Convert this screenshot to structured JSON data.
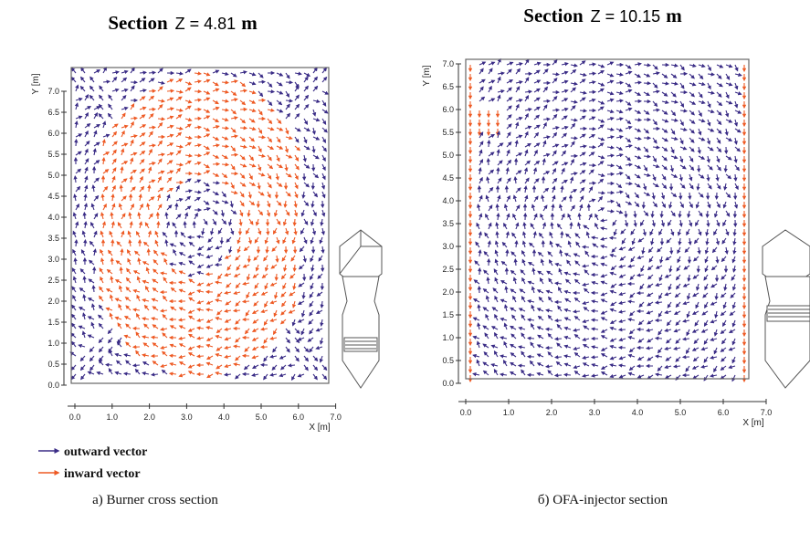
{
  "panels": [
    {
      "title": {
        "word": "Section",
        "equation": "Z = 4.81",
        "unit": "m"
      },
      "x_label": "X [m]",
      "y_label": "Y [m]",
      "xticks": [
        "0.0",
        "1.0",
        "2.0",
        "3.0",
        "4.0",
        "5.0",
        "6.0",
        "7.0"
      ],
      "yticks": [
        "0.0",
        "0.5",
        "1.0",
        "1.5",
        "2.0",
        "2.5",
        "3.0",
        "3.5",
        "4.0",
        "4.5",
        "5.0",
        "5.5",
        "6.0",
        "6.5",
        "7.0"
      ],
      "caption": "a) Burner cross section"
    },
    {
      "title": {
        "word": "Section",
        "equation": "Z = 10.15",
        "unit": "m"
      },
      "x_label": "X [m]",
      "y_label": "Y [m]",
      "xticks": [
        "0.0",
        "1.0",
        "2.0",
        "3.0",
        "4.0",
        "5.0",
        "6.0",
        "7.0"
      ],
      "yticks": [
        "0.0",
        "0.5",
        "1.0",
        "1.5",
        "2.0",
        "2.5",
        "3.0",
        "3.5",
        "4.0",
        "4.5",
        "5.0",
        "5.5",
        "6.0",
        "6.5",
        "7.0"
      ],
      "caption": "б) OFA-injector section"
    }
  ],
  "legend": [
    {
      "label": "outward vector",
      "color": "#3a2c86"
    },
    {
      "label": "inward vector",
      "color": "#ee5a24"
    }
  ]
}
